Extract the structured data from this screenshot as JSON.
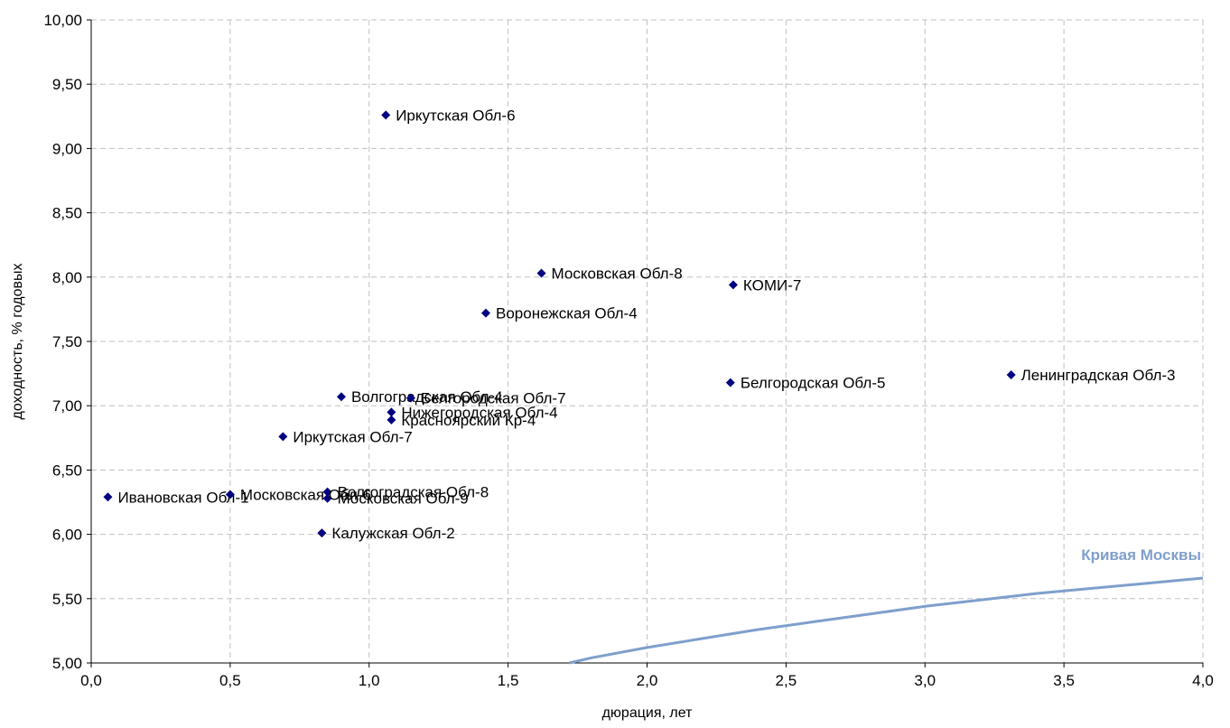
{
  "chart_data": {
    "type": "scatter",
    "xlabel": "дюрация, лет",
    "ylabel": "доходность, % годовых",
    "xlim": [
      0,
      4
    ],
    "ylim": [
      5,
      10
    ],
    "grid": true,
    "x_ticks": [
      "0,0",
      "0,5",
      "1,0",
      "1,5",
      "2,0",
      "2,5",
      "3,0",
      "3,5",
      "4,0"
    ],
    "y_ticks": [
      "5,00",
      "5,50",
      "6,00",
      "6,50",
      "7,00",
      "7,50",
      "8,00",
      "8,50",
      "9,00",
      "9,50",
      "10,00"
    ],
    "point_color": "#000080",
    "curve_color": "#7f9fcc",
    "points": [
      {
        "label": "Иркутская Обл-6",
        "x": 1.06,
        "y": 9.26
      },
      {
        "label": "Московская Обл-8",
        "x": 1.62,
        "y": 8.03
      },
      {
        "label": "КОМИ-7",
        "x": 2.31,
        "y": 7.94
      },
      {
        "label": "Воронежская Обл-4",
        "x": 1.42,
        "y": 7.72
      },
      {
        "label": "Ленинградская Обл-3",
        "x": 3.31,
        "y": 7.24
      },
      {
        "label": "Белгородская Обл-5",
        "x": 2.3,
        "y": 7.18
      },
      {
        "label": "Волгоградская Обл-4",
        "x": 0.9,
        "y": 7.07
      },
      {
        "label": "Белгородская Обл-7",
        "x": 1.15,
        "y": 7.06
      },
      {
        "label": "Нижегородская Обл-4",
        "x": 1.08,
        "y": 6.95
      },
      {
        "label": "Красноярский Кр-4",
        "x": 1.08,
        "y": 6.89
      },
      {
        "label": "Иркутская Обл-7",
        "x": 0.69,
        "y": 6.76
      },
      {
        "label": "Волгоградская Обл-8",
        "x": 0.85,
        "y": 6.33
      },
      {
        "label": "Ивановская Обл-1",
        "x": 0.06,
        "y": 6.29
      },
      {
        "label": "Московская Обл-9",
        "x": 0.85,
        "y": 6.28
      },
      {
        "label": "Московская Обл-6",
        "x": 0.5,
        "y": 6.31
      },
      {
        "label": "Калужская Обл-2",
        "x": 0.83,
        "y": 6.01
      }
    ],
    "curve": {
      "label": "Кривая Москвы",
      "x": [
        1.72,
        1.8,
        2.0,
        2.2,
        2.4,
        2.6,
        2.8,
        3.0,
        3.2,
        3.4,
        3.6,
        3.8,
        4.0
      ],
      "y": [
        5.0,
        5.04,
        5.12,
        5.19,
        5.26,
        5.32,
        5.38,
        5.44,
        5.49,
        5.54,
        5.58,
        5.62,
        5.66
      ]
    }
  }
}
